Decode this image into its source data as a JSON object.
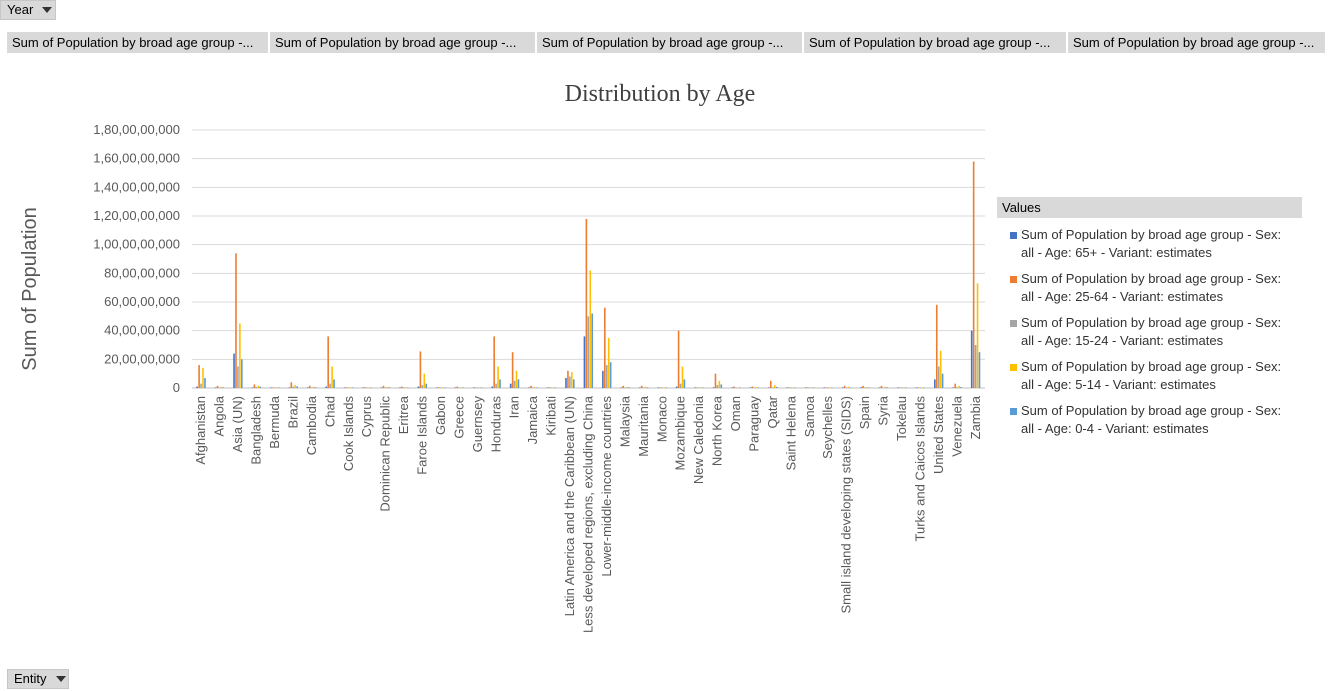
{
  "filters": {
    "year_label": "Year",
    "entity_label": "Entity"
  },
  "value_fields": [
    "Sum of Population  by broad age group -...",
    "Sum of Population  by broad age group -...",
    "Sum of Population  by broad age group -...",
    "Sum of Population  by broad age group -...",
    "Sum of Population  by broad age group -..."
  ],
  "legend": {
    "title": "Values",
    "items": [
      {
        "line1": "Sum of Population by broad age group - Sex:",
        "line2": "all - Age: 65+ - Variant: estimates",
        "color": "#4472c4"
      },
      {
        "line1": "Sum of Population by broad age group - Sex:",
        "line2": "all - Age: 25-64 - Variant: estimates",
        "color": "#ed7d31"
      },
      {
        "line1": "Sum of Population by broad age group - Sex:",
        "line2": "all - Age: 15-24 - Variant: estimates",
        "color": "#a5a5a5"
      },
      {
        "line1": "Sum of Population by broad age group - Sex:",
        "line2": "all - Age: 5-14 - Variant: estimates",
        "color": "#ffc000"
      },
      {
        "line1": "Sum of Population by broad age group - Sex:",
        "line2": "all - Age: 0-4 - Variant: estimates",
        "color": "#5b9bd5"
      }
    ]
  },
  "chart_data": {
    "type": "bar",
    "title": "Distribution by Age",
    "ylabel": "Sum of Population",
    "ylim": [
      0,
      18000000000
    ],
    "yticks": [
      0,
      2000000000,
      4000000000,
      6000000000,
      8000000000,
      10000000000,
      12000000000,
      14000000000,
      16000000000,
      18000000000
    ],
    "ytick_labels": [
      "0",
      "20,00,00,000",
      "40,00,00,000",
      "60,00,00,000",
      "80,00,00,000",
      "1,00,00,00,000",
      "1,20,00,00,000",
      "1,40,00,00,000",
      "1,60,00,00,000",
      "1,80,00,00,000"
    ],
    "grid": true,
    "legend_position": "right",
    "categories": [
      "Afghanistan",
      "Angola",
      "Asia (UN)",
      "Bangladesh",
      "Bermuda",
      "Brazil",
      "Cambodia",
      "Chad",
      "Cook Islands",
      "Cyprus",
      "Dominican Republic",
      "Eritrea",
      "Faroe Islands",
      "Gabon",
      "Greece",
      "Guernsey",
      "Honduras",
      "Iran",
      "Jamaica",
      "Kiribati",
      "Latin America and the Caribbean (UN)",
      "Less developed regions, excluding China",
      "Lower-middle-income countries",
      "Malaysia",
      "Mauritania",
      "Monaco",
      "Mozambique",
      "New Caledonia",
      "North Korea",
      "Oman",
      "Paraguay",
      "Qatar",
      "Saint Helena",
      "Samoa",
      "Seychelles",
      "Small island developing states (SIDS)",
      "Spain",
      "Syria",
      "Tokelau",
      "Turks and Caicos Islands",
      "United States",
      "Venezuela",
      "Zambia"
    ],
    "series": [
      {
        "name": "Sum of Population by broad age group - Sex: all - Age: 65+ - Variant: estimates",
        "values": [
          100000000,
          5000000,
          2400000000,
          30000000,
          500000,
          40000000,
          10000000,
          100000000,
          100000,
          5000000,
          20000000,
          5000000,
          100000000,
          5000000,
          30000000,
          100000,
          100000000,
          300000000,
          10000000,
          500000,
          700000000,
          3600000000,
          1200000000,
          10000000,
          5000000,
          100000,
          100000000,
          1000000,
          50000000,
          5000000,
          10000000,
          5000000,
          200000,
          1000000,
          200000,
          30000000,
          50000000,
          10000000,
          10000,
          100000,
          600000000,
          20000000,
          4000000000
        ]
      },
      {
        "name": "Sum of Population by broad age group - Sex: all - Age: 25-64 - Variant: estimates",
        "values": [
          1600000000,
          150000000,
          9400000000,
          250000000,
          5000000,
          400000000,
          150000000,
          3600000000,
          1000000,
          50000000,
          150000000,
          100000000,
          2550000000,
          50000000,
          100000000,
          2000000,
          3600000000,
          2500000000,
          150000000,
          10000000,
          1200000000,
          11800000000,
          5600000000,
          150000000,
          150000000,
          500000,
          4000000000,
          10000000,
          1000000000,
          100000000,
          100000000,
          500000000,
          1000000,
          10000000,
          1000000,
          150000000,
          150000000,
          150000000,
          100000,
          2000000,
          5800000000,
          300000000,
          15800000000
        ]
      },
      {
        "name": "Sum of Population by broad age group - Sex: all - Age: 15-24 - Variant: estimates",
        "values": [
          300000000,
          40000000,
          1500000000,
          80000000,
          1000000,
          100000000,
          40000000,
          300000000,
          200000,
          10000000,
          40000000,
          20000000,
          200000000,
          10000000,
          20000000,
          500000,
          300000000,
          500000000,
          30000000,
          2000000,
          800000000,
          5000000000,
          1600000000,
          40000000,
          40000000,
          100000,
          300000000,
          3000000,
          200000000,
          20000000,
          30000000,
          50000000,
          200000,
          3000000,
          200000,
          40000000,
          30000000,
          40000000,
          20000,
          500000,
          1500000000,
          60000000,
          3000000000
        ]
      },
      {
        "name": "Sum of Population by broad age group - Sex: all - Age: 5-14 - Variant: estimates",
        "values": [
          1400000000,
          80000000,
          4500000000,
          150000000,
          1500000,
          200000000,
          80000000,
          1500000000,
          500000,
          20000000,
          80000000,
          40000000,
          1000000000,
          20000000,
          40000000,
          1000000,
          1500000000,
          1200000000,
          60000000,
          5000000,
          1100000000,
          8200000000,
          3500000000,
          80000000,
          80000000,
          200000,
          1500000000,
          5000000,
          500000000,
          40000000,
          60000000,
          200000000,
          500000,
          5000000,
          500000,
          80000000,
          60000000,
          80000000,
          50000,
          1000000,
          2600000000,
          150000000,
          7300000000
        ]
      },
      {
        "name": "Sum of Population by broad age group - Sex: all - Age: 0-4 - Variant: estimates",
        "values": [
          700000000,
          50000000,
          2000000000,
          100000000,
          800000,
          120000000,
          50000000,
          600000000,
          200000,
          10000000,
          50000000,
          25000000,
          300000000,
          10000000,
          20000000,
          500000,
          600000000,
          600000000,
          30000000,
          3000000,
          600000000,
          5200000000,
          1800000000,
          50000000,
          50000000,
          100000,
          600000000,
          3000000,
          250000000,
          20000000,
          30000000,
          80000000,
          200000,
          3000000,
          200000,
          40000000,
          30000000,
          50000000,
          20000,
          500000,
          1000000000,
          70000000,
          2500000000
        ]
      }
    ]
  }
}
